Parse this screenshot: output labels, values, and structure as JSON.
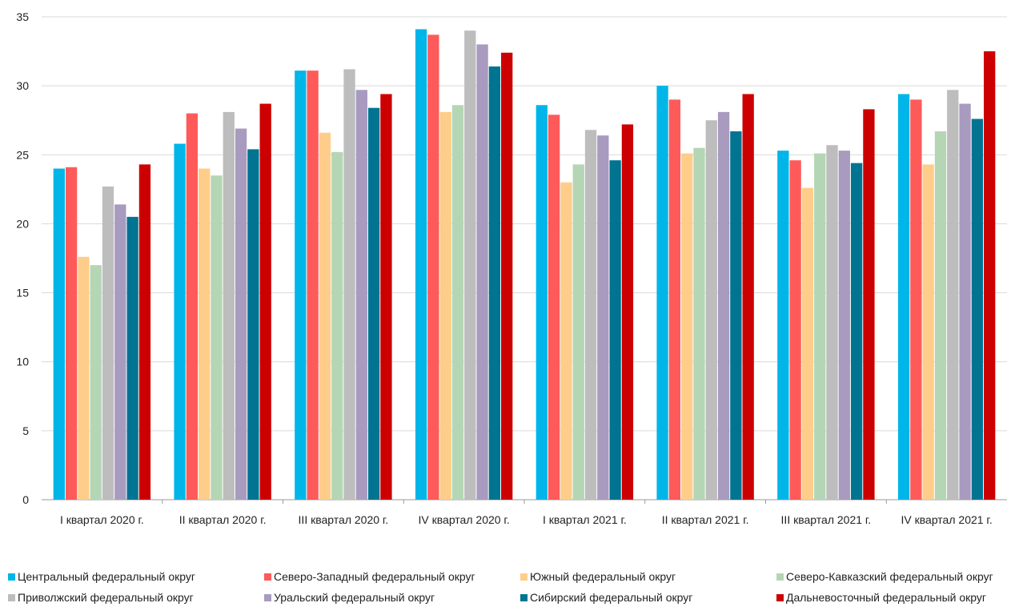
{
  "chart_data": {
    "type": "bar",
    "categories": [
      "I квартал 2020 г.",
      "II квартал 2020 г.",
      "III квартал 2020 г.",
      "IV квартал 2020 г.",
      "I квартал 2021 г.",
      "II квартал 2021 г.",
      "III квартал 2021 г.",
      "IV квартал 2021 г."
    ],
    "ylim": [
      0,
      35
    ],
    "yticks": [
      0,
      5,
      10,
      15,
      20,
      25,
      30,
      35
    ],
    "grid": true,
    "legend_position": "bottom",
    "series": [
      {
        "name": "Центральный федеральный округ",
        "color": "#00B6E8",
        "values": [
          24.0,
          25.8,
          31.1,
          34.1,
          28.6,
          30.0,
          25.3,
          29.4
        ]
      },
      {
        "name": "Северо-Западный федеральный округ",
        "color": "#FF5A5A",
        "values": [
          24.1,
          28.0,
          31.1,
          33.7,
          27.9,
          29.0,
          24.6,
          29.0
        ]
      },
      {
        "name": "Южный федеральный округ",
        "color": "#FFCD8A",
        "values": [
          17.6,
          24.0,
          26.6,
          28.1,
          23.0,
          25.1,
          22.6,
          24.3
        ]
      },
      {
        "name": "Северо-Кавказский федеральный округ",
        "color": "#B5D6B5",
        "values": [
          17.0,
          23.5,
          25.2,
          28.6,
          24.3,
          25.5,
          25.1,
          26.7
        ]
      },
      {
        "name": "Приволжский федеральный округ",
        "color": "#BDBDBD",
        "values": [
          22.7,
          28.1,
          31.2,
          34.0,
          26.8,
          27.5,
          25.7,
          29.7
        ]
      },
      {
        "name": "Уральский федеральный округ",
        "color": "#A89BBF",
        "values": [
          21.4,
          26.9,
          29.7,
          33.0,
          26.4,
          28.1,
          25.3,
          28.7
        ]
      },
      {
        "name": "Сибирский федеральный округ",
        "color": "#007491",
        "values": [
          20.5,
          25.4,
          28.4,
          31.4,
          24.6,
          26.7,
          24.4,
          27.6
        ]
      },
      {
        "name": "Дальневосточный федеральный округ",
        "color": "#CC0000",
        "values": [
          24.3,
          28.7,
          29.4,
          32.4,
          27.2,
          29.4,
          28.3,
          32.5
        ]
      }
    ]
  }
}
